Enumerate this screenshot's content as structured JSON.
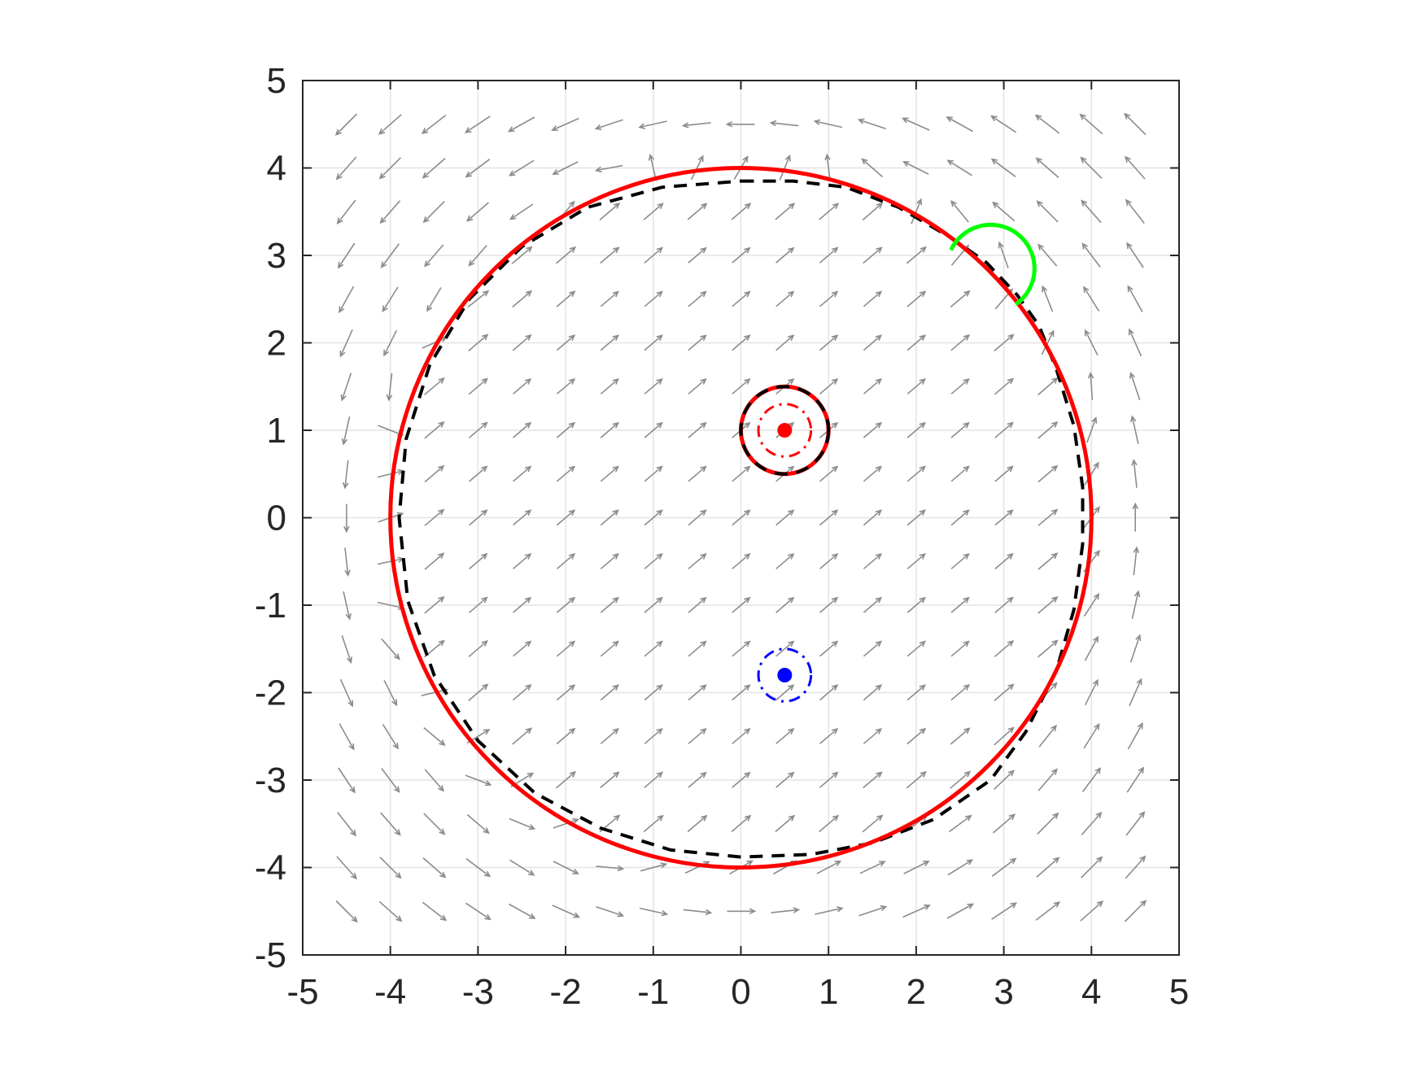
{
  "chart_data": {
    "type": "scatter",
    "title": "",
    "xlabel": "",
    "ylabel": "",
    "xlim": [
      -5,
      5
    ],
    "ylim": [
      -5,
      5
    ],
    "grid": true,
    "legend": "none",
    "xticks": [
      "-5",
      "-4",
      "-3",
      "-2",
      "-1",
      "0",
      "1",
      "2",
      "3",
      "4",
      "5"
    ],
    "yticks": [
      "5",
      "4",
      "3",
      "2",
      "1",
      "0",
      "-1",
      "-2",
      "-3",
      "-4",
      "-5"
    ],
    "xtick_values": [
      -5,
      -4,
      -3,
      -2,
      -1,
      0,
      1,
      2,
      3,
      4,
      5
    ],
    "ytick_values": [
      5,
      4,
      3,
      2,
      1,
      0,
      -1,
      -2,
      -3,
      -4,
      -5
    ],
    "vector_field": {
      "color": "#8c8c8c",
      "grid_min": -4.5,
      "grid_max": 4.5,
      "grid_step": 0.5
    },
    "circles": [
      {
        "center": [
          0,
          0
        ],
        "radius": 4,
        "color": "#ff0000",
        "style": "solid"
      },
      {
        "center": [
          0.5,
          1
        ],
        "radius": 0.5,
        "color": "#ff0000",
        "style": "solid"
      },
      {
        "center": [
          0.5,
          1
        ],
        "radius": 0.3,
        "color": "#ff0000",
        "style": "dashdot"
      },
      {
        "center": [
          0.5,
          -1.8
        ],
        "radius": 0.3,
        "color": "#0000ff",
        "style": "dashdot"
      }
    ],
    "arcs": [
      {
        "center": [
          2.85,
          2.85
        ],
        "radius": 0.5,
        "start_deg": 155,
        "end_deg": -55,
        "color": "#00ff00",
        "style": "solid"
      }
    ],
    "dashed_boundary": {
      "color": "#000000",
      "points": [
        [
          0,
          3.85
        ],
        [
          0.6,
          3.85
        ],
        [
          1.2,
          3.78
        ],
        [
          1.8,
          3.55
        ],
        [
          2.4,
          3.2
        ],
        [
          2.8,
          2.92
        ],
        [
          3.15,
          2.55
        ],
        [
          3.4,
          2.2
        ],
        [
          3.6,
          1.7
        ],
        [
          3.8,
          1.05
        ],
        [
          3.9,
          0.35
        ],
        [
          3.9,
          -0.3
        ],
        [
          3.8,
          -1.05
        ],
        [
          3.6,
          -1.75
        ],
        [
          3.25,
          -2.45
        ],
        [
          2.85,
          -3.0
        ],
        [
          2.2,
          -3.45
        ],
        [
          1.5,
          -3.72
        ],
        [
          0.8,
          -3.85
        ],
        [
          0.0,
          -3.88
        ],
        [
          -0.8,
          -3.8
        ],
        [
          -1.6,
          -3.55
        ],
        [
          -2.35,
          -3.15
        ],
        [
          -3.0,
          -2.55
        ],
        [
          -3.5,
          -1.8
        ],
        [
          -3.8,
          -0.95
        ],
        [
          -3.9,
          0
        ],
        [
          -3.82,
          0.9
        ],
        [
          -3.55,
          1.75
        ],
        [
          -3.1,
          2.5
        ],
        [
          -2.5,
          3.1
        ],
        [
          -1.75,
          3.55
        ],
        [
          -0.9,
          3.78
        ],
        [
          0,
          3.85
        ]
      ]
    },
    "dashed_circle": {
      "center": [
        0.5,
        1
      ],
      "radius": 0.5,
      "color": "#000000"
    },
    "points": [
      {
        "x": 0.5,
        "y": 1,
        "color": "#ff0000"
      },
      {
        "x": 0.5,
        "y": -1.8,
        "color": "#0000ff"
      }
    ]
  }
}
